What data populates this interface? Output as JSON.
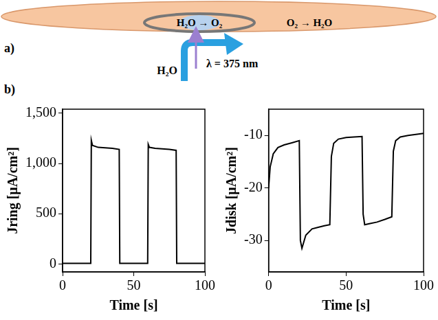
{
  "diagram": {
    "label": "a)",
    "reactions": [
      "H₂O → O₂",
      "O₂ → H₂O"
    ],
    "inlet": "H₂O",
    "light": "λ = 375 nm"
  },
  "charts_label": "b)",
  "chart_data": [
    {
      "type": "line",
      "xlabel": "Time [s]",
      "ylabel": "Jring [μA/cm²]",
      "color": "#000000",
      "grid": false,
      "x": [
        0,
        10,
        19.8,
        20.2,
        21,
        25,
        30,
        35,
        39.8,
        40.2,
        50,
        59.8,
        60.2,
        61,
        65,
        70,
        75,
        79.8,
        80.2,
        90,
        100
      ],
      "values": [
        5,
        5,
        5,
        1230,
        1180,
        1160,
        1155,
        1150,
        1140,
        5,
        5,
        5,
        1190,
        1160,
        1150,
        1145,
        1140,
        1130,
        5,
        5,
        5
      ],
      "xlim": [
        0,
        100
      ],
      "xticks": [
        0,
        50,
        100
      ],
      "ylim": [
        -80,
        1540
      ],
      "yticks": [
        0,
        500,
        {
          "value": 1000,
          "label": "1,000"
        },
        {
          "value": 1500,
          "label": "1,500"
        }
      ]
    },
    {
      "type": "line",
      "xlabel": "Time [s]",
      "ylabel": "Jdisk [μA/cm²]",
      "color": "#000000",
      "grid": false,
      "x": [
        0,
        1,
        3,
        6,
        10,
        15,
        19.8,
        20.5,
        21.5,
        24,
        28,
        32,
        36,
        39.5,
        40.5,
        42,
        45,
        50,
        55,
        60.3,
        61,
        62,
        65,
        70,
        75,
        79.5,
        80.5,
        82,
        85,
        90,
        95,
        100
      ],
      "values": [
        -20,
        -16,
        -13.5,
        -12.3,
        -11.8,
        -11.4,
        -11,
        -30,
        -31.5,
        -29,
        -27.8,
        -27.5,
        -27.2,
        -27,
        -14,
        -11.5,
        -10.7,
        -10.4,
        -10.3,
        -10.2,
        -25,
        -27,
        -26.8,
        -26.5,
        -26,
        -25.5,
        -13,
        -11,
        -10.3,
        -10,
        -9.8,
        -9.6
      ],
      "xlim": [
        0,
        100
      ],
      "xticks": [
        0,
        50,
        100
      ],
      "ylim": [
        -36,
        -5
      ],
      "yticks": [
        -30,
        -20,
        -10
      ]
    }
  ]
}
